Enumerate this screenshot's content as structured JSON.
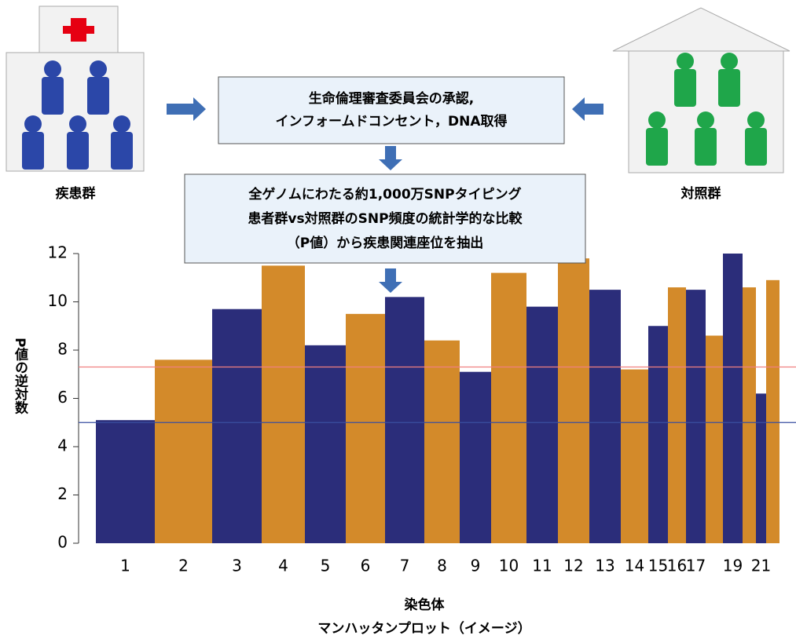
{
  "diagram": {
    "patients_label": "疾患群",
    "controls_label": "対照群",
    "box1": [
      "生命倫理審査委員会の承認,",
      "インフォームドコンセント，DNA取得"
    ],
    "box2": [
      "全ゲノムにわたる約1,000万SNPタイピング",
      "患者群vs対照群のSNP頻度の統計学的な比較",
      "（P値）から疾患関連座位を抽出"
    ],
    "caption": "マンハッタンプロット（イメージ）"
  },
  "chart_data": {
    "type": "manhattan",
    "ylabel": "P値の逆対数",
    "xlabel": "染色体",
    "categories": [
      "1",
      "2",
      "3",
      "4",
      "5",
      "6",
      "7",
      "8",
      "9",
      "10",
      "11",
      "12",
      "13",
      "14",
      "15",
      "16",
      "17",
      null,
      "19",
      null,
      "21",
      null
    ],
    "values": [
      5.1,
      7.6,
      9.7,
      11.5,
      8.2,
      9.5,
      10.2,
      8.4,
      7.1,
      11.2,
      9.8,
      11.8,
      10.5,
      7.2,
      9,
      10.6,
      10.5,
      8.6,
      12,
      10.6,
      6.2,
      10.9
    ],
    "colors": [
      "#2b2d7a",
      "#d38a2a"
    ],
    "ylim": [
      0,
      12
    ],
    "yticks": [
      0,
      2,
      4,
      6,
      8,
      10,
      12
    ],
    "thresholds": [
      {
        "value": 7.3,
        "color": "#f08080"
      },
      {
        "value": 5,
        "color": "#3a4fa0"
      }
    ]
  }
}
